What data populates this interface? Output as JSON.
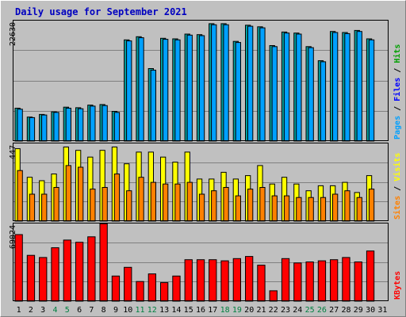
{
  "chart_data": {
    "title": "Daily usage for September 2021",
    "type": "bar",
    "categories": [
      "1",
      "2",
      "3",
      "4",
      "5",
      "6",
      "7",
      "8",
      "9",
      "10",
      "11",
      "12",
      "13",
      "14",
      "15",
      "16",
      "17",
      "18",
      "19",
      "20",
      "21",
      "22",
      "23",
      "24",
      "25",
      "26",
      "27",
      "28",
      "29",
      "30",
      "31"
    ],
    "weekend_days": [
      "4",
      "5",
      "11",
      "12",
      "18",
      "19",
      "25",
      "26"
    ],
    "grid": true,
    "panels": [
      {
        "name": "hits-files-pages",
        "ymax_label": "22630",
        "ymax": 22630,
        "legend_parts": [
          {
            "text": "Pages",
            "color": "#00a0ff"
          },
          {
            "text": " / ",
            "color": "#000000"
          },
          {
            "text": "Files",
            "color": "#0000ff"
          },
          {
            "text": " / ",
            "color": "#000000"
          },
          {
            "text": "Hits",
            "color": "#00a000"
          }
        ],
        "series": [
          {
            "color": "#00a0a0",
            "values": [
              6300,
              4600,
              5100,
              5600,
              6500,
              6400,
              6900,
              7000,
              5700,
              19400,
              20000,
              13900,
              19700,
              19600,
              20500,
              20400,
              22500,
              22500,
              19100,
              22200,
              21900,
              18300,
              20900,
              20700,
              18100,
              15400,
              21000,
              20800,
              21200,
              19600,
              0
            ]
          },
          {
            "color": "#00a0ff",
            "values": [
              6100,
              4500,
              5000,
              5500,
              6300,
              6200,
              6700,
              6800,
              5500,
              19200,
              19800,
              13600,
              19500,
              19400,
              20300,
              20200,
              22300,
              22300,
              18900,
              22000,
              21700,
              18100,
              20700,
              20500,
              17900,
              15200,
              20800,
              20600,
              21000,
              19400,
              0
            ]
          }
        ]
      },
      {
        "name": "visits-sites",
        "ymax_label": "447",
        "ymax": 447,
        "legend_parts": [
          {
            "text": "Sites",
            "color": "#ff8000"
          },
          {
            "text": " / ",
            "color": "#000000"
          },
          {
            "text": "Visits",
            "color": "#ffff00"
          }
        ],
        "series": [
          {
            "color": "#ffff00",
            "values": [
              430,
              260,
              240,
              280,
              440,
              420,
              380,
              420,
              440,
              340,
              410,
              410,
              380,
              350,
              410,
              250,
              250,
              290,
              250,
              270,
              330,
              220,
              260,
              220,
              180,
              210,
              210,
              230,
              170,
              270,
              0
            ]
          },
          {
            "color": "#ff8000",
            "values": [
              300,
              160,
              160,
              200,
              330,
              320,
              190,
              200,
              280,
              180,
              260,
              230,
              220,
              220,
              230,
              160,
              180,
              200,
              150,
              190,
              200,
              150,
              150,
              140,
              140,
              140,
              160,
              180,
              140,
              190,
              0
            ]
          }
        ]
      },
      {
        "name": "kbytes",
        "ymax_label": "69024",
        "ymax": 69024,
        "legend_parts": [
          {
            "text": "KBytes",
            "color": "#ff0000"
          }
        ],
        "series": [
          {
            "color": "#ff0000",
            "values": [
              61000,
              42000,
              40000,
              49000,
              56000,
              54000,
              59000,
              71000,
              23000,
              31000,
              18000,
              25000,
              17000,
              23000,
              38000,
              38000,
              38000,
              37000,
              39000,
              41000,
              33000,
              9500,
              39000,
              35000,
              36000,
              37000,
              38000,
              40000,
              36000,
              46000,
              0
            ]
          }
        ]
      }
    ]
  }
}
